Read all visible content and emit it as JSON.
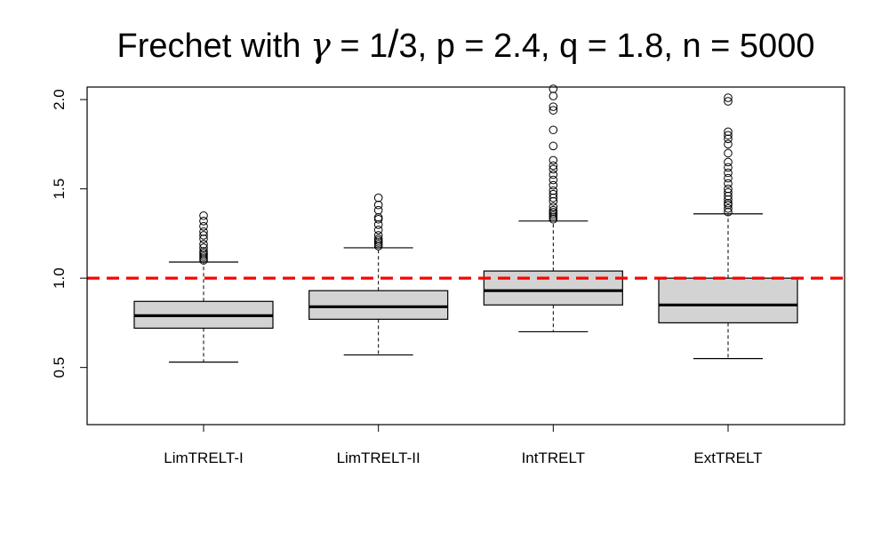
{
  "chart_data": {
    "type": "boxplot",
    "title": "Frechet with γ = 1/3, p = 2.4, q = 1.8, n = 5000",
    "title_parts": {
      "prefix": "Frechet with ",
      "gamma_symbol": "γ",
      "eq1": " = 1",
      "slash": "/",
      "rest": "3, p = 2.4, q = 1.8, n = 5000"
    },
    "xlabel": "",
    "ylabel": "",
    "ylim": [
      0.18,
      2.07
    ],
    "yticks": [
      0.5,
      1.0,
      1.5,
      2.0
    ],
    "ytick_labels": [
      "0.5",
      "1.0",
      "1.5",
      "2.0"
    ],
    "categories": [
      "LimTRELT-I",
      "LimTRELT-II",
      "IntTRELT",
      "ExtTRELT"
    ],
    "box_fill": "#d3d3d3",
    "reference_line": {
      "y": 1.0,
      "color": "#ff0000",
      "style": "dashed"
    },
    "boxes": [
      {
        "name": "LimTRELT-I",
        "whisker_low": 0.53,
        "q1": 0.72,
        "median": 0.79,
        "q3": 0.87,
        "whisker_high": 1.09,
        "outliers": [
          1.1,
          1.11,
          1.12,
          1.13,
          1.14,
          1.15,
          1.17,
          1.19,
          1.22,
          1.24,
          1.26,
          1.29,
          1.32,
          1.35
        ]
      },
      {
        "name": "LimTRELT-II",
        "whisker_low": 0.57,
        "q1": 0.77,
        "median": 0.84,
        "q3": 0.93,
        "whisker_high": 1.17,
        "outliers": [
          1.18,
          1.19,
          1.2,
          1.21,
          1.22,
          1.24,
          1.27,
          1.3,
          1.33,
          1.34,
          1.38,
          1.41,
          1.45
        ]
      },
      {
        "name": "IntTRELT",
        "whisker_low": 0.7,
        "q1": 0.85,
        "median": 0.93,
        "q3": 1.04,
        "whisker_high": 1.32,
        "outliers": [
          1.33,
          1.34,
          1.35,
          1.36,
          1.37,
          1.38,
          1.4,
          1.43,
          1.45,
          1.47,
          1.49,
          1.52,
          1.55,
          1.58,
          1.61,
          1.63,
          1.66,
          1.74,
          1.83,
          1.94,
          1.96,
          2.02,
          2.06
        ]
      },
      {
        "name": "ExtTRELT",
        "whisker_low": 0.55,
        "q1": 0.75,
        "median": 0.85,
        "q3": 1.0,
        "whisker_high": 1.36,
        "outliers": [
          1.37,
          1.39,
          1.41,
          1.42,
          1.44,
          1.46,
          1.48,
          1.5,
          1.53,
          1.56,
          1.59,
          1.62,
          1.65,
          1.7,
          1.75,
          1.78,
          1.8,
          1.82,
          1.99,
          2.01
        ]
      }
    ]
  }
}
